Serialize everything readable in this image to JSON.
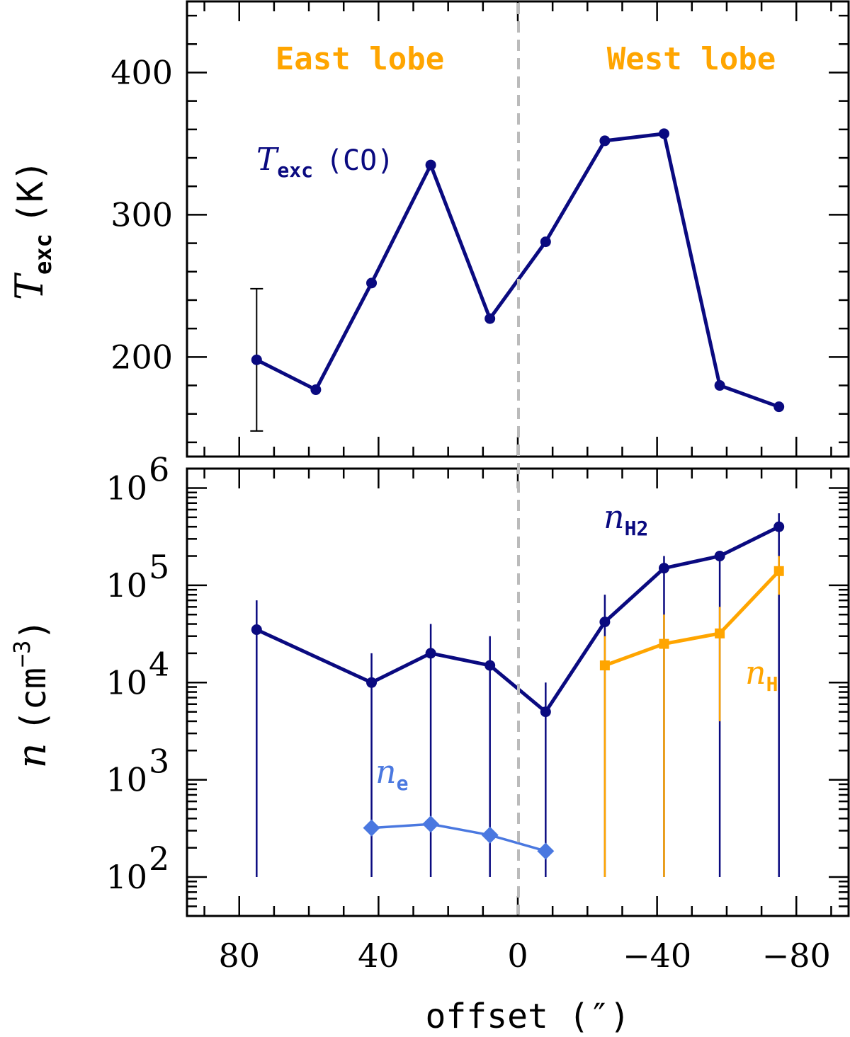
{
  "colors": {
    "navy": "#0a0a80",
    "orange": "#ffa500",
    "light_blue": "#4a78e0",
    "error_black": "#000000",
    "divider": "#bbbbbb"
  },
  "chart_data": [
    {
      "type": "line",
      "panel": "top",
      "xlim": [
        95,
        -95
      ],
      "ylim": [
        130,
        450
      ],
      "y_ticks": [
        200,
        300,
        400
      ],
      "y_tick_labels": [
        "200",
        "300",
        "400"
      ],
      "ylabel": {
        "main": "T",
        "sub": "exc",
        "unit": "(K)"
      },
      "region_labels": {
        "east": "East lobe",
        "west": "West lobe"
      },
      "series": [
        {
          "name": "Texc (CO)",
          "label": {
            "main": "T",
            "sub": "exc",
            "rest": "(CO)"
          },
          "x": [
            75,
            58,
            42,
            25,
            8,
            -8,
            -25,
            -42,
            -58,
            -75
          ],
          "y": [
            198,
            177,
            252,
            335,
            227,
            281,
            352,
            357,
            180,
            165
          ],
          "errorbar": {
            "x": 75,
            "low": 148,
            "high": 248
          }
        }
      ]
    },
    {
      "type": "line",
      "panel": "bottom",
      "yscale": "log",
      "xlim": [
        95,
        -95
      ],
      "ylim_exp": [
        1.6,
        6.2
      ],
      "y_tick_exponents": [
        2,
        3,
        4,
        5,
        6
      ],
      "y_tick_base": "10",
      "y_tick_sup": [
        "2",
        "3",
        "4",
        "5",
        "6"
      ],
      "ylabel": {
        "main": "n",
        "unit_open": "(cm",
        "unit_sup": "−3",
        "unit_close": ")"
      },
      "x_ticks": [
        80,
        40,
        0,
        -40,
        -80
      ],
      "x_tick_labels": [
        "80",
        "40",
        "0",
        "−40",
        "−80"
      ],
      "xlabel": "offset (″)",
      "series": [
        {
          "name": "nH2",
          "label": {
            "main": "n",
            "sub": "H2"
          },
          "x": [
            75,
            42,
            25,
            8,
            -8,
            -25,
            -42,
            -58,
            -75
          ],
          "y": [
            35000,
            10000,
            20000,
            15000,
            5000,
            42000,
            150000,
            200000,
            400000
          ],
          "err_low": [
            100,
            100,
            100,
            100,
            100,
            100,
            100,
            100,
            100
          ],
          "err_high": [
            70000,
            20000,
            40000,
            30000,
            10000,
            80000,
            200000,
            200000,
            550000
          ]
        },
        {
          "name": "nH",
          "label": {
            "main": "n",
            "sub": "H"
          },
          "x": [
            -25,
            -42,
            -58,
            -75
          ],
          "y": [
            15000,
            25000,
            32000,
            140000
          ],
          "err_low": [
            100,
            100,
            4000,
            80000
          ],
          "err_high": [
            30000,
            50000,
            60000,
            200000
          ]
        },
        {
          "name": "ne",
          "label": {
            "main": "n",
            "sub": "e"
          },
          "x": [
            42,
            25,
            8,
            -8
          ],
          "y": [
            320,
            350,
            270,
            185
          ]
        }
      ]
    }
  ]
}
